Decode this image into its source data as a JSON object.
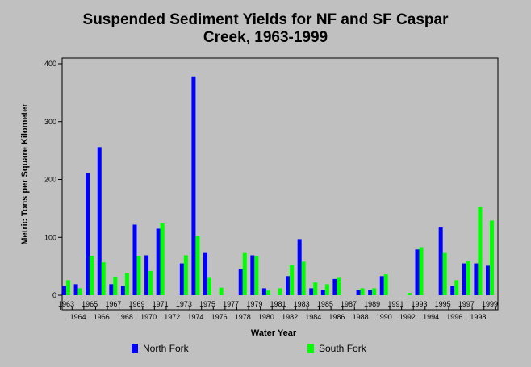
{
  "chart_data": {
    "type": "bar",
    "title_lines": [
      "Suspended Sediment Yields for NF and SF Caspar",
      "Creek, 1963-1999"
    ],
    "xlabel": "Water Year",
    "ylabel": "Metric Tons per Square Kilometer",
    "ylim": [
      0,
      400
    ],
    "yticks": [
      0,
      100,
      200,
      300,
      400
    ],
    "grid": false,
    "legend_placement": "bottom",
    "categories": [
      "1963",
      "1964",
      "1965",
      "1966",
      "1967",
      "1968",
      "1969",
      "1970",
      "1971",
      "1972",
      "1973",
      "1974",
      "1975",
      "1976",
      "1977",
      "1978",
      "1979",
      "1980",
      "1981",
      "1982",
      "1983",
      "1984",
      "1985",
      "1986",
      "1987",
      "1988",
      "1989",
      "1990",
      "1991",
      "1992",
      "1993",
      "1994",
      "1995",
      "1996",
      "1997",
      "1998",
      "1999"
    ],
    "series": [
      {
        "name": "North Fork",
        "color": "#0000ff",
        "values": [
          16,
          19,
          211,
          256,
          19,
          16,
          122,
          69,
          115,
          0,
          55,
          378,
          73,
          0,
          0,
          45,
          69,
          12,
          0,
          33,
          97,
          12,
          9,
          28,
          0,
          9,
          9,
          33,
          0,
          0,
          79,
          0,
          117,
          16,
          55,
          55,
          51
        ]
      },
      {
        "name": "South Fork",
        "color": "#00ff00",
        "values": [
          26,
          12,
          68,
          57,
          31,
          39,
          68,
          42,
          124,
          0,
          69,
          103,
          30,
          13,
          0,
          73,
          68,
          8,
          12,
          52,
          58,
          22,
          19,
          30,
          0,
          12,
          12,
          36,
          0,
          4,
          83,
          0,
          73,
          26,
          59,
          152,
          129
        ]
      }
    ]
  }
}
